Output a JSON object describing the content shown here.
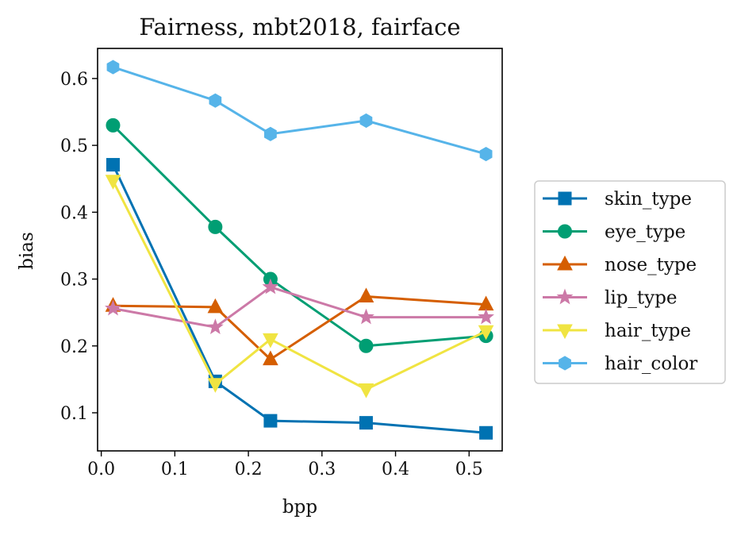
{
  "chart_data": {
    "type": "line",
    "title": "Fairness, mbt2018, fairface",
    "xlabel": "bpp",
    "ylabel": "bias",
    "xlim": [
      -0.005,
      0.545
    ],
    "ylim": [
      0.043,
      0.645
    ],
    "xticks": [
      0.0,
      0.1,
      0.2,
      0.3,
      0.4,
      0.5
    ],
    "xtick_labels": [
      "0.0",
      "0.1",
      "0.2",
      "0.3",
      "0.4",
      "0.5"
    ],
    "yticks": [
      0.1,
      0.2,
      0.3,
      0.4,
      0.5,
      0.6
    ],
    "ytick_labels": [
      "0.1",
      "0.2",
      "0.3",
      "0.4",
      "0.5",
      "0.6"
    ],
    "grid": false,
    "legend_position": "outside-right",
    "x": [
      0.016,
      0.155,
      0.23,
      0.36,
      0.523
    ],
    "series": [
      {
        "name": "skin_type",
        "color": "#0072b2",
        "marker": "square",
        "values": [
          0.471,
          0.147,
          0.088,
          0.085,
          0.07
        ]
      },
      {
        "name": "eye_type",
        "color": "#009e73",
        "marker": "circle",
        "values": [
          0.53,
          0.378,
          0.3,
          0.2,
          0.215
        ]
      },
      {
        "name": "nose_type",
        "color": "#d55e00",
        "marker": "triangle-up",
        "values": [
          0.26,
          0.258,
          0.18,
          0.274,
          0.262
        ]
      },
      {
        "name": "lip_type",
        "color": "#cc79a7",
        "marker": "star",
        "values": [
          0.256,
          0.228,
          0.288,
          0.243,
          0.243
        ]
      },
      {
        "name": "hair_type",
        "color": "#f0e442",
        "marker": "triangle-down",
        "values": [
          0.447,
          0.143,
          0.21,
          0.135,
          0.222
        ]
      },
      {
        "name": "hair_color",
        "color": "#56b4e9",
        "marker": "hexagon",
        "values": [
          0.617,
          0.567,
          0.517,
          0.537,
          0.487
        ]
      }
    ]
  }
}
